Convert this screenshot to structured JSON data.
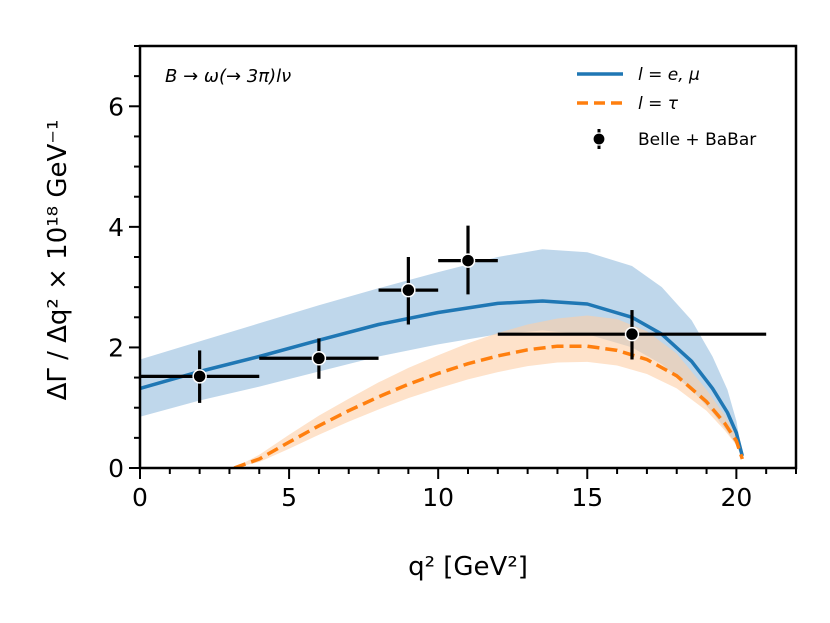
{
  "chart_data": {
    "type": "line",
    "title": "",
    "annotation": "B → ω(→ 3π)lν",
    "xlabel": "q² [GeV²]",
    "ylabel": "ΔΓ / Δq² × 10¹⁸ GeV⁻¹",
    "xlim": [
      0,
      22
    ],
    "ylim": [
      0,
      7
    ],
    "x_ticks": [
      0,
      5,
      10,
      15,
      20
    ],
    "y_ticks": [
      0,
      2,
      4,
      6
    ],
    "x_minor_step": 1,
    "y_minor_step": 0.5,
    "grid": false,
    "legend_position": "top-right",
    "legend": [
      {
        "label": "l = e, μ",
        "style": "solid",
        "color": "#1f77b4"
      },
      {
        "label": "l = τ",
        "style": "dashed",
        "color": "#ff7f0e"
      },
      {
        "label": "Belle + BaBar",
        "style": "errorbar",
        "color": "#000000"
      }
    ],
    "series": [
      {
        "name": "l = e, μ",
        "color": "#1f77b4",
        "band_color": "#a9c9e4",
        "x": [
          0.0,
          2.0,
          4.0,
          6.0,
          8.0,
          10.0,
          12.0,
          13.5,
          15.0,
          16.5,
          17.5,
          18.5,
          19.2,
          19.7,
          20.0,
          20.2
        ],
        "y": [
          1.32,
          1.6,
          1.85,
          2.12,
          2.38,
          2.58,
          2.73,
          2.77,
          2.72,
          2.5,
          2.22,
          1.77,
          1.32,
          0.92,
          0.58,
          0.2
        ],
        "lower": [
          0.85,
          1.12,
          1.35,
          1.6,
          1.85,
          2.05,
          2.22,
          2.28,
          2.22,
          2.0,
          1.72,
          1.3,
          0.92,
          0.6,
          0.38,
          0.15
        ],
        "upper": [
          1.8,
          2.1,
          2.4,
          2.7,
          2.98,
          3.25,
          3.5,
          3.63,
          3.58,
          3.35,
          3.0,
          2.45,
          1.85,
          1.3,
          0.78,
          0.2
        ]
      },
      {
        "name": "l = τ",
        "color": "#ff7f0e",
        "band_color": "#fdcfa6",
        "x": [
          3.16,
          4.0,
          5.0,
          6.0,
          7.0,
          8.0,
          9.0,
          10.0,
          11.0,
          12.0,
          13.0,
          14.0,
          15.0,
          16.0,
          17.0,
          18.0,
          19.0,
          19.6,
          20.0,
          20.2
        ],
        "y": [
          0.0,
          0.15,
          0.43,
          0.7,
          0.95,
          1.18,
          1.39,
          1.57,
          1.73,
          1.86,
          1.96,
          2.02,
          2.02,
          1.95,
          1.8,
          1.53,
          1.1,
          0.75,
          0.45,
          0.15
        ],
        "lower": [
          0.0,
          0.1,
          0.32,
          0.55,
          0.77,
          0.97,
          1.16,
          1.32,
          1.47,
          1.59,
          1.69,
          1.75,
          1.76,
          1.7,
          1.56,
          1.32,
          0.95,
          0.63,
          0.38,
          0.15
        ],
        "upper": [
          0.0,
          0.22,
          0.55,
          0.87,
          1.15,
          1.42,
          1.66,
          1.87,
          2.07,
          2.24,
          2.38,
          2.48,
          2.53,
          2.47,
          2.27,
          1.9,
          1.3,
          0.88,
          0.55,
          0.18
        ]
      }
    ],
    "data_points": {
      "name": "Belle + BaBar",
      "points": [
        {
          "x": 2.0,
          "y": 1.52,
          "xlo": 0.0,
          "xhi": 4.0,
          "ylo": 1.08,
          "yhi": 1.95
        },
        {
          "x": 6.0,
          "y": 1.82,
          "xlo": 4.0,
          "xhi": 8.0,
          "ylo": 1.48,
          "yhi": 2.15
        },
        {
          "x": 9.0,
          "y": 2.95,
          "xlo": 8.0,
          "xhi": 10.0,
          "ylo": 2.38,
          "yhi": 3.5
        },
        {
          "x": 11.0,
          "y": 3.44,
          "xlo": 10.0,
          "xhi": 12.0,
          "ylo": 2.88,
          "yhi": 4.02
        },
        {
          "x": 16.5,
          "y": 2.22,
          "xlo": 12.0,
          "xhi": 21.0,
          "ylo": 1.8,
          "yhi": 2.62
        }
      ]
    }
  }
}
